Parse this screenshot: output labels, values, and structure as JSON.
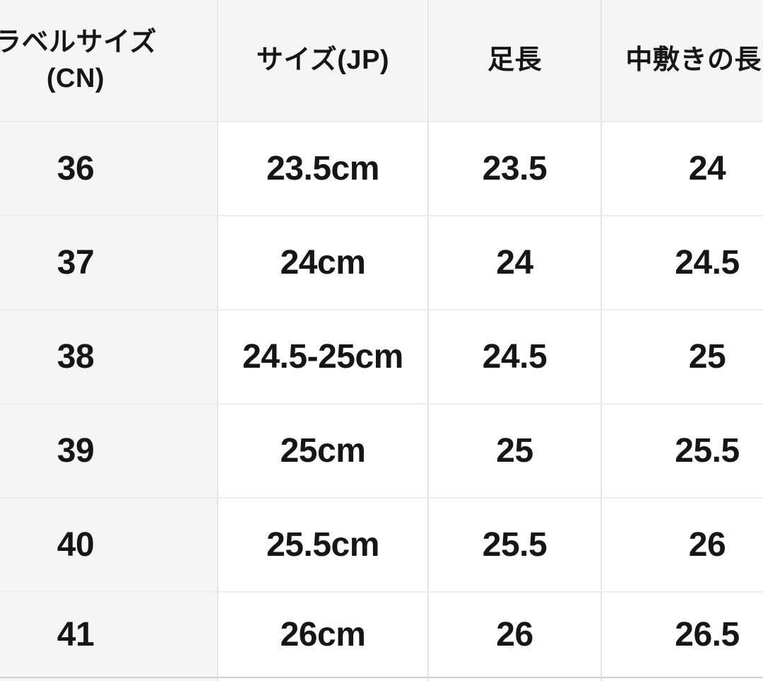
{
  "colors": {
    "header_bg": "#f5f5f6",
    "label_column_bg": "#f5f5f6",
    "cell_bg": "#ffffff",
    "vertical_divider": "#e4e4e6",
    "row_separator": "#ededef",
    "bottom_border": "#cfd0d3",
    "text": "#161616"
  },
  "table": {
    "header": {
      "label_size_line1": "ラベルサイズ",
      "label_size_line2": "(CN)",
      "size_jp": "サイズ(JP)",
      "foot_length": "足長",
      "insole_length": "中敷きの長さ"
    },
    "rows": [
      {
        "cn": "36",
        "jp": "23.5cm",
        "foot": "23.5",
        "insole": "24"
      },
      {
        "cn": "37",
        "jp": "24cm",
        "foot": "24",
        "insole": "24.5"
      },
      {
        "cn": "38",
        "jp": "24.5-25cm",
        "foot": "24.5",
        "insole": "25"
      },
      {
        "cn": "39",
        "jp": "25cm",
        "foot": "25",
        "insole": "25.5"
      },
      {
        "cn": "40",
        "jp": "25.5cm",
        "foot": "25.5",
        "insole": "26"
      },
      {
        "cn": "41",
        "jp": "26cm",
        "foot": "26",
        "insole": "26.5"
      }
    ]
  },
  "chart_data": {
    "type": "table",
    "title": "",
    "columns": [
      "ラベルサイズ(CN)",
      "サイズ(JP)",
      "足長",
      "中敷きの長さ"
    ],
    "rows": [
      [
        "36",
        "23.5cm",
        "23.5",
        "24"
      ],
      [
        "37",
        "24cm",
        "24",
        "24.5"
      ],
      [
        "38",
        "24.5-25cm",
        "24.5",
        "25"
      ],
      [
        "39",
        "25cm",
        "25",
        "25.5"
      ],
      [
        "40",
        "25.5cm",
        "25.5",
        "26"
      ],
      [
        "41",
        "26cm",
        "26",
        "26.5"
      ]
    ]
  }
}
